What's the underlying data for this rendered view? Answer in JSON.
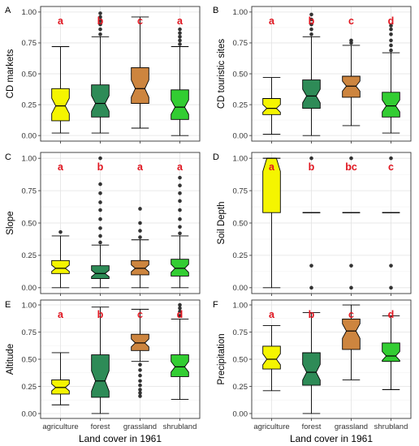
{
  "colors": {
    "agriculture": "#f5f500",
    "forest": "#2e8b57",
    "grassland": "#cd853f",
    "shrubland": "#32cd32",
    "sig_letters": "#e0141e"
  },
  "chart_data": [
    {
      "type": "boxplot",
      "panel": "A",
      "ylabel": "CD markets",
      "xlabel": "",
      "ylim": [
        0,
        1
      ],
      "yticks": [
        "0.00",
        "0.25",
        "0.50",
        "0.75",
        "1.00"
      ],
      "categories": [
        "agriculture",
        "forest",
        "grassland",
        "shrubland"
      ],
      "letters": [
        "a",
        "b",
        "c",
        "a"
      ],
      "boxes": [
        {
          "min": 0.02,
          "q1": 0.12,
          "median": 0.24,
          "q3": 0.38,
          "max": 0.72,
          "outliers": []
        },
        {
          "min": 0.02,
          "q1": 0.15,
          "median": 0.26,
          "q3": 0.41,
          "max": 0.8,
          "outliers": [
            0.82,
            0.86,
            0.9,
            0.93,
            0.96,
            0.99
          ]
        },
        {
          "min": 0.06,
          "q1": 0.26,
          "median": 0.38,
          "q3": 0.55,
          "max": 0.96,
          "outliers": []
        },
        {
          "min": 0.0,
          "q1": 0.13,
          "median": 0.23,
          "q3": 0.37,
          "max": 0.72,
          "outliers": [
            0.74,
            0.77,
            0.8,
            0.83,
            0.86
          ]
        }
      ]
    },
    {
      "type": "boxplot",
      "panel": "B",
      "ylabel": "CD touristic sites",
      "xlabel": "",
      "ylim": [
        0,
        1
      ],
      "yticks": [
        "0.00",
        "0.25",
        "0.50",
        "0.75",
        "1.00"
      ],
      "categories": [
        "agriculture",
        "forest",
        "grassland",
        "shrubland"
      ],
      "letters": [
        "a",
        "b",
        "c",
        "d"
      ],
      "boxes": [
        {
          "min": 0.01,
          "q1": 0.17,
          "median": 0.22,
          "q3": 0.3,
          "max": 0.47,
          "outliers": []
        },
        {
          "min": 0.0,
          "q1": 0.22,
          "median": 0.32,
          "q3": 0.45,
          "max": 0.8,
          "outliers": [
            0.82,
            0.86,
            0.9,
            0.94,
            0.98
          ]
        },
        {
          "min": 0.08,
          "q1": 0.31,
          "median": 0.4,
          "q3": 0.48,
          "max": 0.73,
          "outliers": [
            0.75,
            0.77
          ]
        },
        {
          "min": 0.02,
          "q1": 0.15,
          "median": 0.24,
          "q3": 0.35,
          "max": 0.67,
          "outliers": [
            0.69,
            0.73,
            0.77,
            0.82,
            0.86,
            0.89
          ]
        }
      ]
    },
    {
      "type": "boxplot",
      "panel": "C",
      "ylabel": "Slope",
      "xlabel": "",
      "ylim": [
        0,
        1
      ],
      "yticks": [
        "0.00",
        "0.25",
        "0.50",
        "0.75",
        "1.00"
      ],
      "categories": [
        "agriculture",
        "forest",
        "grassland",
        "shrubland"
      ],
      "letters": [
        "a",
        "b",
        "a",
        "a"
      ],
      "boxes": [
        {
          "min": 0.0,
          "q1": 0.11,
          "median": 0.15,
          "q3": 0.21,
          "max": 0.4,
          "outliers": [
            0.43
          ]
        },
        {
          "min": 0.0,
          "q1": 0.07,
          "median": 0.11,
          "q3": 0.17,
          "max": 0.33,
          "outliers": [
            0.35,
            0.4,
            0.46,
            0.53,
            0.6,
            0.66,
            0.73,
            0.8,
            1.0
          ]
        },
        {
          "min": 0.0,
          "q1": 0.1,
          "median": 0.15,
          "q3": 0.21,
          "max": 0.37,
          "outliers": [
            0.39,
            0.44,
            0.5,
            0.61
          ]
        },
        {
          "min": 0.0,
          "q1": 0.09,
          "median": 0.15,
          "q3": 0.22,
          "max": 0.4,
          "outliers": [
            0.42,
            0.47,
            0.53,
            0.6,
            0.67,
            0.73,
            0.79,
            0.85
          ]
        }
      ]
    },
    {
      "type": "boxplot",
      "panel": "D",
      "ylabel": "Soil Depth",
      "xlabel": "",
      "ylim": [
        0,
        1
      ],
      "yticks": [
        "0.00",
        "0.25",
        "0.50",
        "0.75",
        "1.00"
      ],
      "categories": [
        "agriculture",
        "forest",
        "grassland",
        "shrubland"
      ],
      "letters": [
        "a",
        "b",
        "bc",
        "c"
      ],
      "boxes": [
        {
          "min": 0.0,
          "q1": 0.58,
          "median": 1.0,
          "q3": 1.0,
          "max": 1.0,
          "outliers": []
        },
        {
          "min": 0.58,
          "q1": 0.58,
          "median": 0.58,
          "q3": 0.58,
          "max": 0.58,
          "outliers": [
            0.0,
            0.17,
            1.0
          ]
        },
        {
          "min": 0.58,
          "q1": 0.58,
          "median": 0.58,
          "q3": 0.58,
          "max": 0.58,
          "outliers": [
            0.0,
            0.17,
            1.0
          ]
        },
        {
          "min": 0.58,
          "q1": 0.58,
          "median": 0.58,
          "q3": 0.58,
          "max": 0.58,
          "outliers": [
            0.0,
            0.17,
            1.0
          ]
        }
      ]
    },
    {
      "type": "boxplot",
      "panel": "E",
      "ylabel": "Altitude",
      "xlabel": "Land cover in 1961",
      "ylim": [
        0,
        1
      ],
      "yticks": [
        "0.00",
        "0.25",
        "0.50",
        "0.75",
        "1.00"
      ],
      "categories": [
        "agriculture",
        "forest",
        "grassland",
        "shrubland"
      ],
      "letters": [
        "a",
        "b",
        "c",
        "d"
      ],
      "boxes": [
        {
          "min": 0.08,
          "q1": 0.18,
          "median": 0.24,
          "q3": 0.31,
          "max": 0.56,
          "outliers": []
        },
        {
          "min": 0.0,
          "q1": 0.15,
          "median": 0.3,
          "q3": 0.54,
          "max": 0.98,
          "outliers": []
        },
        {
          "min": 0.48,
          "q1": 0.58,
          "median": 0.65,
          "q3": 0.73,
          "max": 0.96,
          "outliers": [
            0.16,
            0.19,
            0.22,
            0.26,
            0.3,
            0.35,
            0.4,
            0.45
          ]
        },
        {
          "min": 0.13,
          "q1": 0.34,
          "median": 0.43,
          "q3": 0.54,
          "max": 0.87,
          "outliers": [
            0.9,
            0.94,
            0.97,
            1.0
          ]
        }
      ]
    },
    {
      "type": "boxplot",
      "panel": "F",
      "ylabel": "Precipitation",
      "xlabel": "Land cover in 1961",
      "ylim": [
        0,
        1
      ],
      "yticks": [
        "0.00",
        "0.25",
        "0.50",
        "0.75",
        "1.00"
      ],
      "categories": [
        "agriculture",
        "forest",
        "grassland",
        "shrubland"
      ],
      "letters": [
        "a",
        "b",
        "c",
        "d"
      ],
      "boxes": [
        {
          "min": 0.21,
          "q1": 0.41,
          "median": 0.5,
          "q3": 0.62,
          "max": 0.81,
          "outliers": []
        },
        {
          "min": 0.0,
          "q1": 0.26,
          "median": 0.38,
          "q3": 0.56,
          "max": 0.93,
          "outliers": []
        },
        {
          "min": 0.31,
          "q1": 0.59,
          "median": 0.76,
          "q3": 0.87,
          "max": 1.0,
          "outliers": []
        },
        {
          "min": 0.22,
          "q1": 0.48,
          "median": 0.53,
          "q3": 0.65,
          "max": 0.9,
          "outliers": []
        }
      ]
    }
  ]
}
